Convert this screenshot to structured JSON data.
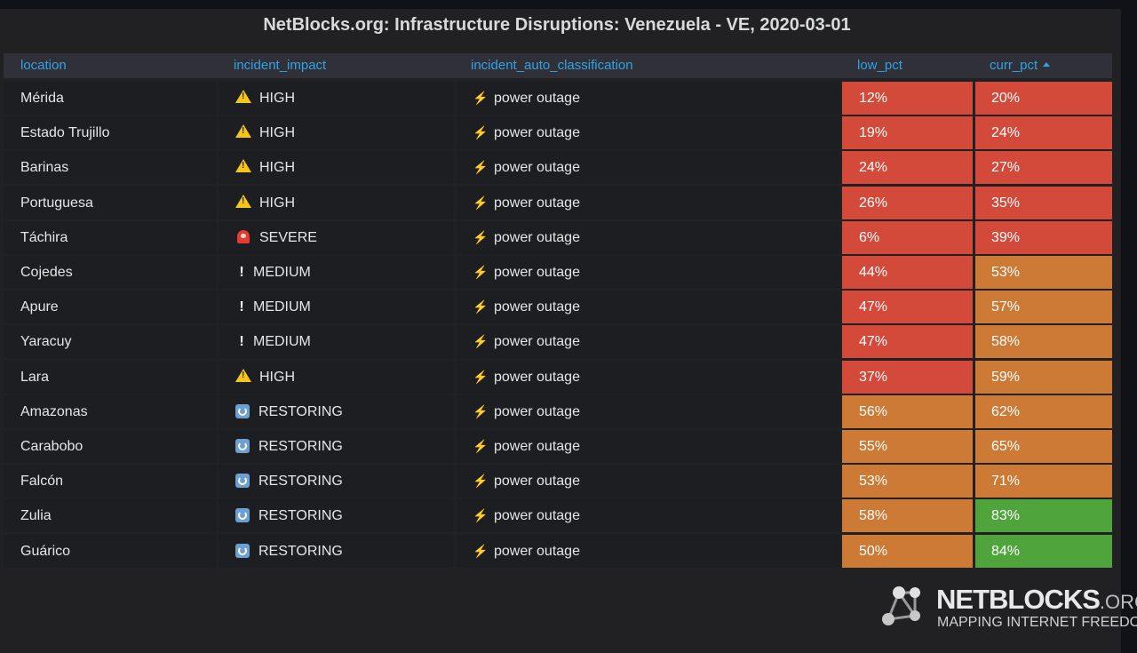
{
  "title": "NetBlocks.org: Infrastructure Disruptions: Venezuela - VE, 2020-03-01",
  "columns": {
    "location": "location",
    "incident_impact": "incident_impact",
    "incident_auto_classification": "incident_auto_classification",
    "low_pct": "low_pct",
    "curr_pct": "curr_pct"
  },
  "sort": {
    "column": "curr_pct",
    "direction": "ascending"
  },
  "colors": {
    "red": "#d44a3a",
    "orange": "#cd7a36",
    "green": "#4fa53c",
    "header_text": "#33a2e5"
  },
  "rows": [
    {
      "location": "Mérida",
      "impact_icon": "warning-icon",
      "impact": "HIGH",
      "class_icon": "lightning-icon",
      "classification": "power outage",
      "low_pct": "12%",
      "low_color": "red",
      "curr_pct": "20%",
      "curr_color": "red"
    },
    {
      "location": "Estado Trujillo",
      "impact_icon": "warning-icon",
      "impact": "HIGH",
      "class_icon": "lightning-icon",
      "classification": "power outage",
      "low_pct": "19%",
      "low_color": "red",
      "curr_pct": "24%",
      "curr_color": "red"
    },
    {
      "location": "Barinas",
      "impact_icon": "warning-icon",
      "impact": "HIGH",
      "class_icon": "lightning-icon",
      "classification": "power outage",
      "low_pct": "24%",
      "low_color": "red",
      "curr_pct": "27%",
      "curr_color": "red"
    },
    {
      "location": "Portuguesa",
      "impact_icon": "warning-icon",
      "impact": "HIGH",
      "class_icon": "lightning-icon",
      "classification": "power outage",
      "low_pct": "26%",
      "low_color": "red",
      "curr_pct": "35%",
      "curr_color": "red"
    },
    {
      "location": "Táchira",
      "impact_icon": "siren-icon",
      "impact": "SEVERE",
      "class_icon": "lightning-icon",
      "classification": "power outage",
      "low_pct": "6%",
      "low_color": "red",
      "curr_pct": "39%",
      "curr_color": "red"
    },
    {
      "location": "Cojedes",
      "impact_icon": "exclamation-icon",
      "impact": "MEDIUM",
      "class_icon": "lightning-icon",
      "classification": "power outage",
      "low_pct": "44%",
      "low_color": "red",
      "curr_pct": "53%",
      "curr_color": "orange"
    },
    {
      "location": "Apure",
      "impact_icon": "exclamation-icon",
      "impact": "MEDIUM",
      "class_icon": "lightning-icon",
      "classification": "power outage",
      "low_pct": "47%",
      "low_color": "red",
      "curr_pct": "57%",
      "curr_color": "orange"
    },
    {
      "location": "Yaracuy",
      "impact_icon": "exclamation-icon",
      "impact": "MEDIUM",
      "class_icon": "lightning-icon",
      "classification": "power outage",
      "low_pct": "47%",
      "low_color": "red",
      "curr_pct": "58%",
      "curr_color": "orange"
    },
    {
      "location": "Lara",
      "impact_icon": "warning-icon",
      "impact": "HIGH",
      "class_icon": "lightning-icon",
      "classification": "power outage",
      "low_pct": "37%",
      "low_color": "red",
      "curr_pct": "59%",
      "curr_color": "orange"
    },
    {
      "location": "Amazonas",
      "impact_icon": "restore-icon",
      "impact": "RESTORING",
      "class_icon": "lightning-icon",
      "classification": "power outage",
      "low_pct": "56%",
      "low_color": "orange",
      "curr_pct": "62%",
      "curr_color": "orange"
    },
    {
      "location": "Carabobo",
      "impact_icon": "restore-icon",
      "impact": "RESTORING",
      "class_icon": "lightning-icon",
      "classification": "power outage",
      "low_pct": "55%",
      "low_color": "orange",
      "curr_pct": "65%",
      "curr_color": "orange"
    },
    {
      "location": "Falcón",
      "impact_icon": "restore-icon",
      "impact": "RESTORING",
      "class_icon": "lightning-icon",
      "classification": "power outage",
      "low_pct": "53%",
      "low_color": "orange",
      "curr_pct": "71%",
      "curr_color": "orange"
    },
    {
      "location": "Zulia",
      "impact_icon": "restore-icon",
      "impact": "RESTORING",
      "class_icon": "lightning-icon",
      "classification": "power outage",
      "low_pct": "58%",
      "low_color": "orange",
      "curr_pct": "83%",
      "curr_color": "green"
    },
    {
      "location": "Guárico",
      "impact_icon": "restore-icon",
      "impact": "RESTORING",
      "class_icon": "lightning-icon",
      "classification": "power outage",
      "low_pct": "50%",
      "low_color": "orange",
      "curr_pct": "84%",
      "curr_color": "green"
    }
  ],
  "logo": {
    "name": "NETBLOCKS",
    "suffix": ".ORG",
    "tagline": "MAPPING INTERNET FREEDOM"
  }
}
